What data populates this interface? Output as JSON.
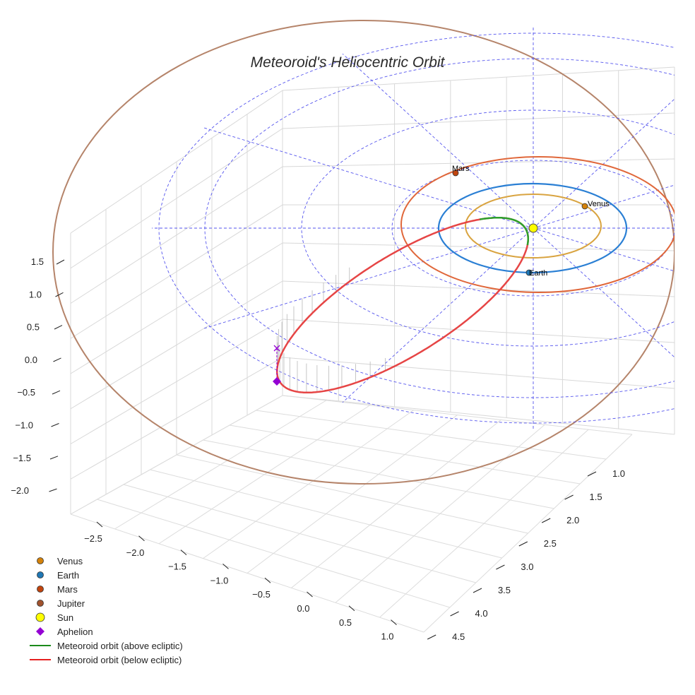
{
  "chart_data": {
    "type": "3d-orbit",
    "title": "Meteoroid's Heliocentric Orbit",
    "axes": {
      "x": {
        "ticks": [
          "−2.5",
          "−2.0",
          "−1.5",
          "−1.0",
          "−0.5",
          "0.0",
          "0.5",
          "1.0"
        ],
        "range": [
          -2.8,
          1.2
        ]
      },
      "y": {
        "ticks": [
          "1.0",
          "1.5",
          "2.0",
          "2.5",
          "3.0",
          "3.5",
          "4.0",
          "4.5"
        ],
        "range": [
          0.7,
          4.7
        ]
      },
      "z": {
        "ticks": [
          "1.5",
          "1.0",
          "0.5",
          "0.0",
          "−0.5",
          "−1.0",
          "−1.5",
          "−2.0"
        ],
        "range": [
          -2.2,
          1.7
        ]
      }
    },
    "bodies": [
      {
        "name": "Venus",
        "label": "Venus",
        "orbit_radius_au": 0.72,
        "color": "#d4820a",
        "orbit_color": "#d9a441"
      },
      {
        "name": "Earth",
        "label": "Earth",
        "orbit_radius_au": 1.0,
        "color": "#1f77b4",
        "orbit_color": "#2a7fd4"
      },
      {
        "name": "Mars",
        "label": "Mars",
        "orbit_radius_au": 1.52,
        "color": "#c1440e",
        "orbit_color": "#e0673a"
      },
      {
        "name": "Jupiter",
        "label": "",
        "orbit_radius_au": 5.2,
        "color": "#a0522d",
        "orbit_color": "#b5846a"
      },
      {
        "name": "Sun",
        "label": "",
        "orbit_radius_au": 0,
        "color": "#ffff00"
      }
    ],
    "meteoroid_orbit": {
      "perihelion_au": 0.6,
      "aphelion_au": 3.5,
      "above_ecliptic_color": "#2ca02c",
      "below_ecliptic_color": "#e64545"
    },
    "aphelion_marker_color": "#9400d3",
    "ecliptic_grid_color": "#5555ee"
  },
  "legend": [
    {
      "label": "Venus",
      "marker": "dot",
      "color": "#d4820a"
    },
    {
      "label": "Earth",
      "marker": "dot",
      "color": "#1f77b4"
    },
    {
      "label": "Mars",
      "marker": "dot",
      "color": "#c1440e"
    },
    {
      "label": "Jupiter",
      "marker": "dot",
      "color": "#a0522d"
    },
    {
      "label": "Sun",
      "marker": "sun",
      "color": "#ffff00"
    },
    {
      "label": "Aphelion",
      "marker": "diamond",
      "color": "#9400d3"
    },
    {
      "label": "Meteoroid orbit (above ecliptic)",
      "marker": "line",
      "color": "#1a8a1a"
    },
    {
      "label": "Meteoroid orbit (below ecliptic)",
      "marker": "line",
      "color": "#e62020"
    }
  ]
}
